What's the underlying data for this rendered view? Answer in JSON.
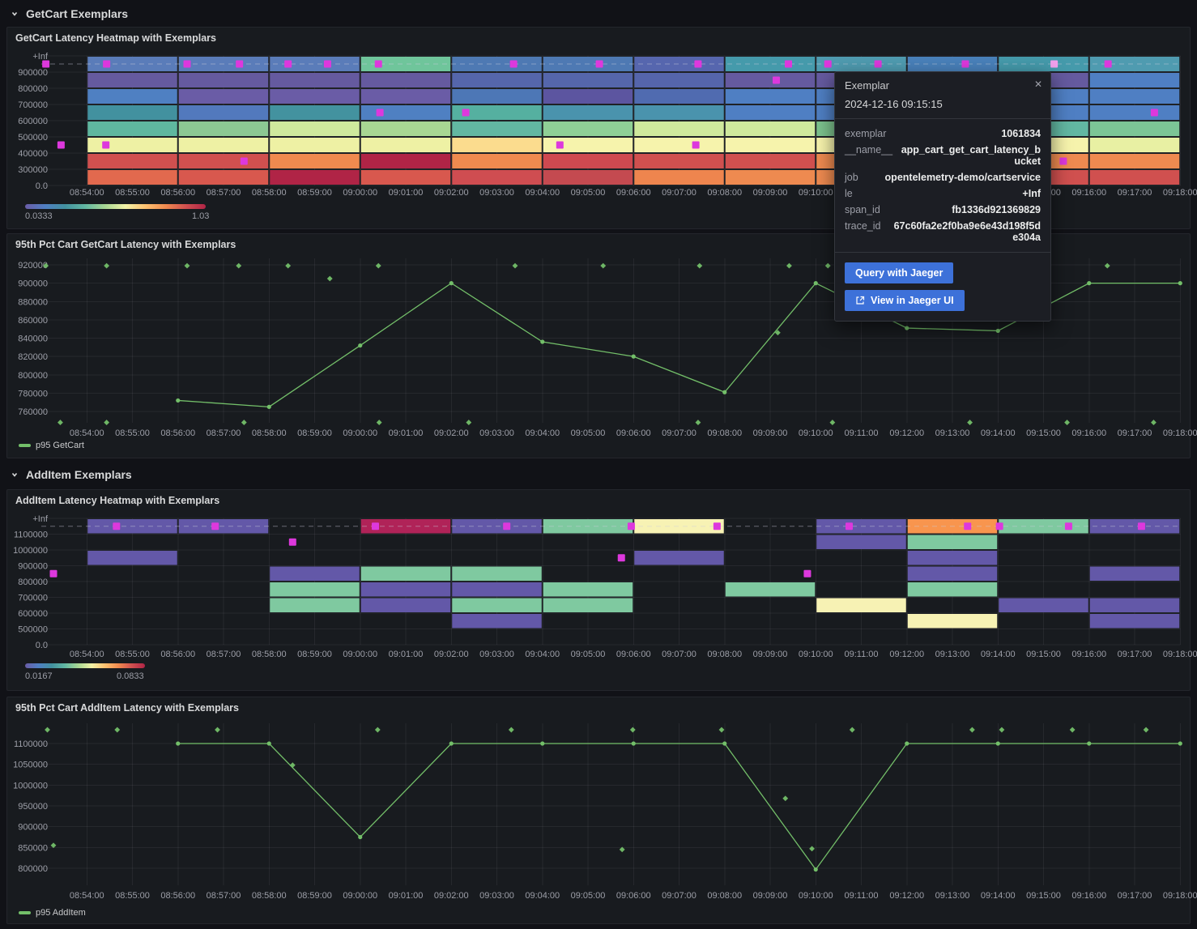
{
  "sections": [
    {
      "title": "GetCart Exemplars"
    },
    {
      "title": "AddItem Exemplars"
    }
  ],
  "x_axis": {
    "ticks": [
      "08:54:00",
      "08:55:00",
      "08:56:00",
      "08:57:00",
      "08:58:00",
      "08:59:00",
      "09:00:00",
      "09:01:00",
      "09:02:00",
      "09:03:00",
      "09:04:00",
      "09:05:00",
      "09:06:00",
      "09:07:00",
      "09:08:00",
      "09:09:00",
      "09:10:00",
      "09:11:00",
      "09:12:00",
      "09:13:00",
      "09:14:00",
      "09:15:00",
      "09:16:00",
      "09:17:00",
      "09:18:00"
    ]
  },
  "colors": {
    "exemplar": "#dd38dd",
    "exemplar_highlight": "#f2a0ec",
    "series_green": "#73bf69",
    "button_blue": "#3d71d9",
    "gradient_stops": [
      "#6a5ca6",
      "#4f7fc3",
      "#42919f",
      "#62b7a2",
      "#a8d793",
      "#f2f2a6",
      "#fdc170",
      "#f08a4f",
      "#d0504f",
      "#b02446"
    ]
  },
  "tooltip": {
    "title": "Exemplar",
    "timestamp": "2024-12-16 09:15:15",
    "fields": [
      {
        "label": "exemplar",
        "value": "1061834"
      },
      {
        "label": "__name__",
        "value": "app_cart_get_cart_latency_bucket"
      },
      {
        "label": "job",
        "value": "opentelemetry-demo/cartservice"
      },
      {
        "label": "le",
        "value": "+Inf"
      },
      {
        "label": "span_id",
        "value": "fb1336d921369829"
      },
      {
        "label": "trace_id",
        "value": "67c60fa2e2f0ba9e6e43d198f5de304a"
      }
    ],
    "buttons": [
      {
        "label": "Query with Jaeger"
      },
      {
        "label": "View in Jaeger UI"
      }
    ]
  },
  "chart_data": [
    {
      "type": "heatmap",
      "title": "GetCart Latency Heatmap with Exemplars",
      "y_labels": [
        "+Inf",
        "900000",
        "800000",
        "700000",
        "600000",
        "500000",
        "400000",
        "300000",
        "0.0"
      ],
      "legend": {
        "min": "0.0333",
        "max": "1.03"
      },
      "bucket_minutes": 2,
      "columns": [
        {
          "start": "08:54:00",
          "cells": [
            "#5a7cb9",
            "#655a9f",
            "#4f80c2",
            "#42919f",
            "#5fb79f",
            "#eef1a4",
            "#d0504f",
            "#e2694e"
          ]
        },
        {
          "start": "08:56:00",
          "cells": [
            "#5a7cb9",
            "#655a9f",
            "#6a5ca6",
            "#5279bd",
            "#8cc893",
            "#eef1a4",
            "#d0504f",
            "#d8584e"
          ]
        },
        {
          "start": "08:58:00",
          "cells": [
            "#5a7cb9",
            "#655a9f",
            "#6a5ca6",
            "#43929f",
            "#cfe99d",
            "#eef1a4",
            "#f08a4f",
            "#b02446"
          ]
        },
        {
          "start": "09:00:00",
          "cells": [
            "#6fc59b",
            "#655a9f",
            "#6a5ca6",
            "#4f80c2",
            "#a8d793",
            "#eef1a4",
            "#b02446",
            "#d8584e"
          ]
        },
        {
          "start": "09:02:00",
          "cells": [
            "#4e79b3",
            "#5566ab",
            "#4d77b6",
            "#55b0a0",
            "#62b7a2",
            "#fbdc8e",
            "#f08a4f",
            "#cf4d51"
          ]
        },
        {
          "start": "09:04:00",
          "cells": [
            "#4e79b3",
            "#5566ab",
            "#5c55a0",
            "#4a93ad",
            "#8fcf96",
            "#f6f3ac",
            "#cf4950",
            "#c44a50"
          ]
        },
        {
          "start": "09:06:00",
          "cells": [
            "#5666ae",
            "#5565ab",
            "#506bb0",
            "#4a93ad",
            "#cfe99d",
            "#f6f3ac",
            "#d0504f",
            "#ee854e"
          ]
        },
        {
          "start": "09:08:00",
          "cells": [
            "#459aab",
            "#655a9f",
            "#4f7fc3",
            "#4f7fc3",
            "#cfe99d",
            "#f6f3ac",
            "#d0504f",
            "#ee8a50"
          ]
        },
        {
          "start": "09:10:00",
          "cells": [
            "#4f9bb0",
            "#655a9f",
            "#4f7fc3",
            "#4f7fc3",
            "#7cc28d",
            "#f6f3ac",
            "#ee8a50",
            "#ee8a50"
          ]
        },
        {
          "start": "09:12:00",
          "cells": [
            "#4981ba",
            "#655a9f",
            "#4f7fc3",
            "#4f7fc3",
            "#7cc28d",
            "#f6f3ac",
            "#ee8a50",
            "#d0504f"
          ]
        },
        {
          "start": "09:14:00",
          "cells": [
            "#459aab",
            "#655a9f",
            "#4f7fc3",
            "#4f7fc3",
            "#62b7a2",
            "#f6f3ac",
            "#ee8a50",
            "#d0504f"
          ]
        },
        {
          "start": "09:16:00",
          "cells": [
            "#4f9bb0",
            "#4f7fc3",
            "#4f7fc3",
            "#4f7fc3",
            "#7cc596",
            "#e8f0a3",
            "#ee8a50",
            "#d0504f"
          ]
        }
      ],
      "exemplars": [
        {
          "t": "08:53:06",
          "band": 0
        },
        {
          "t": "08:54:26",
          "band": 0
        },
        {
          "t": "08:56:12",
          "band": 0
        },
        {
          "t": "08:57:21",
          "band": 0
        },
        {
          "t": "08:58:25",
          "band": 0
        },
        {
          "t": "08:59:17",
          "band": 0
        },
        {
          "t": "09:00:24",
          "band": 0
        },
        {
          "t": "09:03:22",
          "band": 0
        },
        {
          "t": "09:05:15",
          "band": 0
        },
        {
          "t": "09:07:25",
          "band": 0
        },
        {
          "t": "09:09:24",
          "band": 0
        },
        {
          "t": "09:10:16",
          "band": 0
        },
        {
          "t": "09:11:22",
          "band": 0
        },
        {
          "t": "09:13:17",
          "band": 0
        },
        {
          "t": "09:15:14",
          "band": 0,
          "highlight": true
        },
        {
          "t": "09:16:25",
          "band": 0
        },
        {
          "t": "09:09:08",
          "band": 1
        },
        {
          "t": "09:00:26",
          "band": 3
        },
        {
          "t": "09:02:19",
          "band": 3
        },
        {
          "t": "09:17:26",
          "band": 3
        },
        {
          "t": "08:53:26",
          "band": 5
        },
        {
          "t": "08:54:25",
          "band": 5
        },
        {
          "t": "09:04:23",
          "band": 5
        },
        {
          "t": "09:07:22",
          "band": 5
        },
        {
          "t": "08:57:27",
          "band": 6
        },
        {
          "t": "09:15:26",
          "band": 6
        }
      ]
    },
    {
      "type": "line",
      "title": "95th Pct Cart GetCart Latency with Exemplars",
      "y_ticks": [
        "920000",
        "900000",
        "880000",
        "860000",
        "840000",
        "820000",
        "800000",
        "780000",
        "760000"
      ],
      "series": [
        {
          "name": "p95 GetCart",
          "color": "#73bf69",
          "points": [
            [
              "08:56:00",
              772000
            ],
            [
              "08:58:00",
              765000
            ],
            [
              "09:00:00",
              832000
            ],
            [
              "09:02:00",
              900000
            ],
            [
              "09:04:00",
              836000
            ],
            [
              "09:06:00",
              820000
            ],
            [
              "09:08:00",
              781000
            ],
            [
              "09:10:00",
              900000
            ],
            [
              "09:12:00",
              851000
            ],
            [
              "09:14:00",
              848000
            ],
            [
              "09:16:00",
              900000
            ],
            [
              "09:18:00",
              900000
            ]
          ]
        }
      ],
      "exemplars": [
        [
          "08:53:06",
          919000
        ],
        [
          "08:54:26",
          919000
        ],
        [
          "08:56:12",
          919000
        ],
        [
          "08:57:20",
          919000
        ],
        [
          "08:58:25",
          919000
        ],
        [
          "09:00:24",
          919000
        ],
        [
          "09:03:24",
          919000
        ],
        [
          "09:05:20",
          919000
        ],
        [
          "09:07:27",
          919000
        ],
        [
          "09:09:25",
          919000
        ],
        [
          "09:10:16",
          919000
        ],
        [
          "09:16:24",
          919000
        ],
        [
          "08:59:20",
          905000
        ],
        [
          "09:09:10",
          846000
        ],
        [
          "08:53:25",
          748000
        ],
        [
          "08:54:26",
          748000
        ],
        [
          "08:57:27",
          748000
        ],
        [
          "09:00:25",
          748000
        ],
        [
          "09:02:23",
          748000
        ],
        [
          "09:07:25",
          748000
        ],
        [
          "09:10:22",
          748000
        ],
        [
          "09:13:23",
          748000
        ],
        [
          "09:15:31",
          748000
        ],
        [
          "09:17:25",
          748000
        ]
      ]
    },
    {
      "type": "heatmap",
      "title": "AddItem Latency Heatmap with Exemplars",
      "y_labels": [
        "+Inf",
        "1100000",
        "1000000",
        "900000",
        "800000",
        "700000",
        "600000",
        "500000",
        "0.0"
      ],
      "legend": {
        "min": "0.0167",
        "max": "0.0833"
      },
      "bucket_minutes": 2,
      "columns": [
        {
          "start": "08:54:00",
          "cells": [
            "#6358a8",
            null,
            "#6358a8",
            null,
            null,
            null,
            null,
            null
          ]
        },
        {
          "start": "08:56:00",
          "cells": [
            "#6358a8",
            null,
            null,
            null,
            null,
            null,
            null,
            null
          ]
        },
        {
          "start": "08:58:00",
          "cells": [
            null,
            null,
            null,
            "#6358a8",
            "#7fc9a0",
            "#7fc9a0",
            null,
            null
          ]
        },
        {
          "start": "09:00:00",
          "cells": [
            "#b02358",
            null,
            null,
            "#7fc9a0",
            "#6358a8",
            "#6358a8",
            null,
            null
          ]
        },
        {
          "start": "09:02:00",
          "cells": [
            "#6358a8",
            null,
            null,
            "#7fc9a0",
            "#6358a8",
            "#7fc9a0",
            "#6358a8",
            null
          ]
        },
        {
          "start": "09:04:00",
          "cells": [
            "#7fc9a0",
            null,
            null,
            null,
            "#7fc9a0",
            "#7fc9a0",
            null,
            null
          ]
        },
        {
          "start": "09:06:00",
          "cells": [
            "#f7f2b4",
            null,
            "#6358a8",
            null,
            null,
            null,
            null,
            null
          ]
        },
        {
          "start": "09:08:00",
          "cells": [
            null,
            null,
            null,
            null,
            "#7fc9a0",
            null,
            null,
            null
          ]
        },
        {
          "start": "09:10:00",
          "cells": [
            "#6358a8",
            "#6358a8",
            null,
            null,
            null,
            "#f7f2b4",
            null,
            null
          ]
        },
        {
          "start": "09:12:00",
          "cells": [
            "#f8954e",
            "#7fc9a0",
            "#6358a8",
            "#6358a8",
            "#7fc9a0",
            null,
            "#f7f2b4",
            null
          ]
        },
        {
          "start": "09:14:00",
          "cells": [
            "#7fc9a0",
            null,
            null,
            null,
            null,
            "#6358a8",
            null,
            null
          ]
        },
        {
          "start": "09:16:00",
          "cells": [
            "#6358a8",
            null,
            null,
            "#6358a8",
            null,
            "#6358a8",
            "#6358a8",
            null
          ]
        }
      ],
      "exemplars": [
        {
          "t": "08:54:39",
          "band": 0
        },
        {
          "t": "08:56:49",
          "band": 0
        },
        {
          "t": "09:00:20",
          "band": 0
        },
        {
          "t": "09:03:13",
          "band": 0
        },
        {
          "t": "09:05:57",
          "band": 0
        },
        {
          "t": "09:07:50",
          "band": 0
        },
        {
          "t": "09:10:44",
          "band": 0
        },
        {
          "t": "09:13:20",
          "band": 0
        },
        {
          "t": "09:14:02",
          "band": 0
        },
        {
          "t": "09:15:33",
          "band": 0
        },
        {
          "t": "09:17:09",
          "band": 0
        },
        {
          "t": "08:58:31",
          "band": 1
        },
        {
          "t": "09:05:44",
          "band": 2
        },
        {
          "t": "08:53:16",
          "band": 3
        },
        {
          "t": "09:09:49",
          "band": 3
        }
      ]
    },
    {
      "type": "line",
      "title": "95th Pct Cart AddItem Latency with Exemplars",
      "y_ticks": [
        "1100000",
        "1050000",
        "1000000",
        "950000",
        "900000",
        "850000",
        "800000"
      ],
      "series": [
        {
          "name": "p95 AddItem",
          "color": "#73bf69",
          "points": [
            [
              "08:56:00",
              1100000
            ],
            [
              "08:58:00",
              1100000
            ],
            [
              "09:00:00",
              875000
            ],
            [
              "09:02:00",
              1100000
            ],
            [
              "09:04:00",
              1100000
            ],
            [
              "09:06:00",
              1100000
            ],
            [
              "09:08:00",
              1100000
            ],
            [
              "09:10:00",
              797000
            ],
            [
              "09:12:00",
              1100000
            ],
            [
              "09:14:00",
              1100000
            ],
            [
              "09:16:00",
              1100000
            ],
            [
              "09:18:00",
              1100000
            ]
          ]
        }
      ],
      "exemplars": [
        [
          "08:53:08",
          1133000
        ],
        [
          "08:54:40",
          1133000
        ],
        [
          "08:56:52",
          1133000
        ],
        [
          "09:00:23",
          1133000
        ],
        [
          "09:03:19",
          1133000
        ],
        [
          "09:05:59",
          1133000
        ],
        [
          "09:07:56",
          1133000
        ],
        [
          "09:10:48",
          1133000
        ],
        [
          "09:13:26",
          1133000
        ],
        [
          "09:14:05",
          1133000
        ],
        [
          "09:15:38",
          1133000
        ],
        [
          "09:17:15",
          1133000
        ],
        [
          "08:53:16",
          855000
        ],
        [
          "08:58:31",
          1048000
        ],
        [
          "09:05:45",
          845000
        ],
        [
          "09:09:20",
          968000
        ],
        [
          "09:09:55",
          847000
        ]
      ]
    }
  ]
}
